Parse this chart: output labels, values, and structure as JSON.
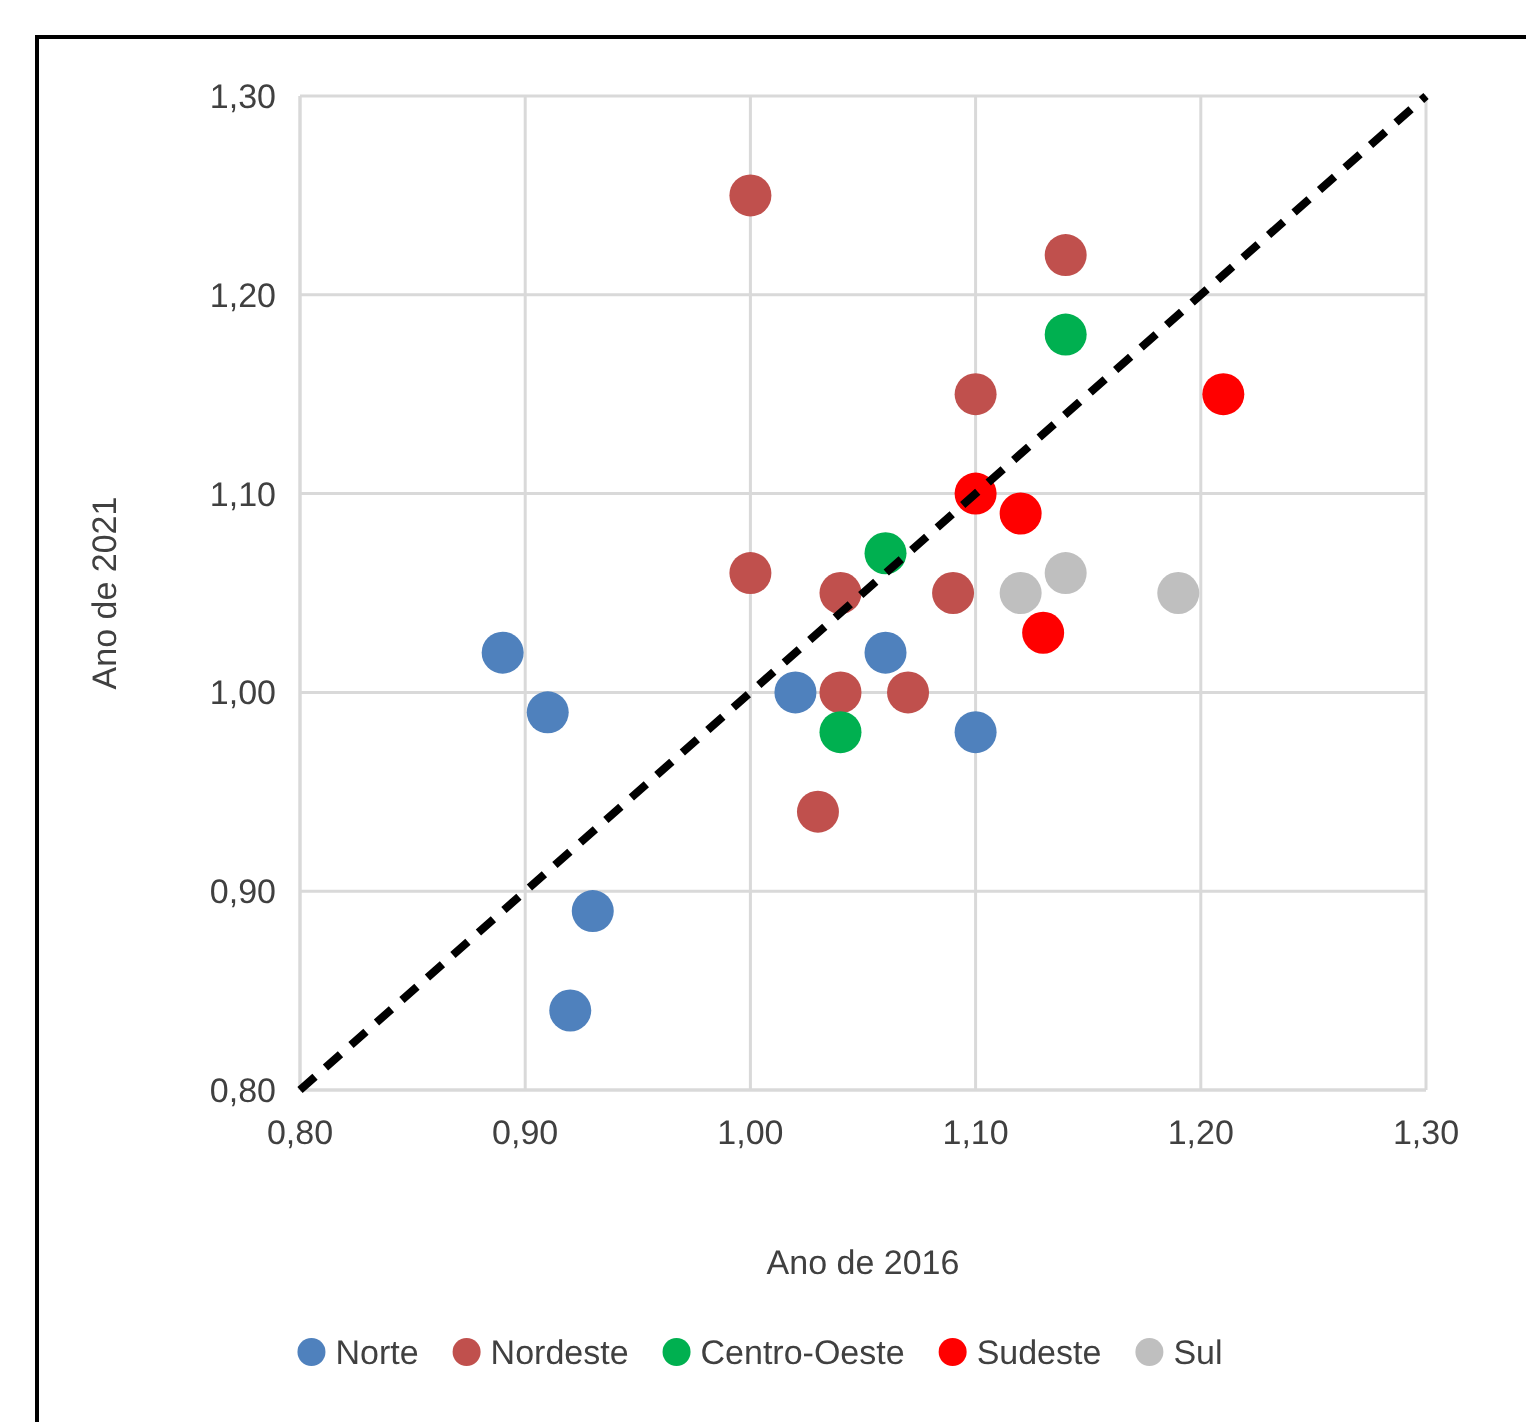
{
  "chart_data": {
    "type": "scatter",
    "xlabel": "Ano de 2016",
    "ylabel": "Ano de 2021",
    "xlim": [
      0.8,
      1.3
    ],
    "ylim": [
      0.8,
      1.3
    ],
    "xticks": [
      {
        "value": 0.8,
        "label": "0,80"
      },
      {
        "value": 0.9,
        "label": "0,90"
      },
      {
        "value": 1.0,
        "label": "1,00"
      },
      {
        "value": 1.1,
        "label": "1,10"
      },
      {
        "value": 1.2,
        "label": "1,20"
      },
      {
        "value": 1.3,
        "label": "1,30"
      }
    ],
    "yticks": [
      {
        "value": 0.8,
        "label": "0,80"
      },
      {
        "value": 0.9,
        "label": "0,90"
      },
      {
        "value": 1.0,
        "label": "1,00"
      },
      {
        "value": 1.1,
        "label": "1,10"
      },
      {
        "value": 1.2,
        "label": "1,20"
      },
      {
        "value": 1.3,
        "label": "1,30"
      }
    ],
    "grid": true,
    "legend": "bottom",
    "marker": "circle",
    "series": [
      {
        "name": "Norte",
        "color": "#4f81bd",
        "x": [
          0.89,
          0.91,
          0.93,
          0.92,
          1.02,
          1.06,
          1.1
        ],
        "values": [
          1.02,
          0.99,
          0.89,
          0.84,
          1.0,
          1.02,
          0.98
        ]
      },
      {
        "name": "Nordeste",
        "color": "#c0504d",
        "x": [
          1.0,
          1.14,
          1.1,
          1.0,
          1.04,
          1.09,
          1.04,
          1.07,
          1.03
        ],
        "values": [
          1.25,
          1.22,
          1.15,
          1.06,
          1.05,
          1.05,
          1.0,
          1.0,
          0.94
        ]
      },
      {
        "name": "Centro-Oeste",
        "color": "#00b050",
        "x": [
          1.14,
          1.06,
          1.04
        ],
        "values": [
          1.18,
          1.07,
          0.98
        ]
      },
      {
        "name": "Sudeste",
        "color": "#ff0000",
        "x": [
          1.21,
          1.1,
          1.12,
          1.13
        ],
        "values": [
          1.15,
          1.1,
          1.09,
          1.03
        ]
      },
      {
        "name": "Sul",
        "color": "#bfbfbf",
        "x": [
          1.12,
          1.14,
          1.19
        ],
        "values": [
          1.05,
          1.06,
          1.05
        ]
      },
      {
        "type": "line",
        "color": "#000000",
        "line_style": "dashed",
        "marker": "none",
        "x": [
          0.8,
          1.3
        ],
        "values": [
          0.8,
          1.3
        ]
      }
    ]
  }
}
